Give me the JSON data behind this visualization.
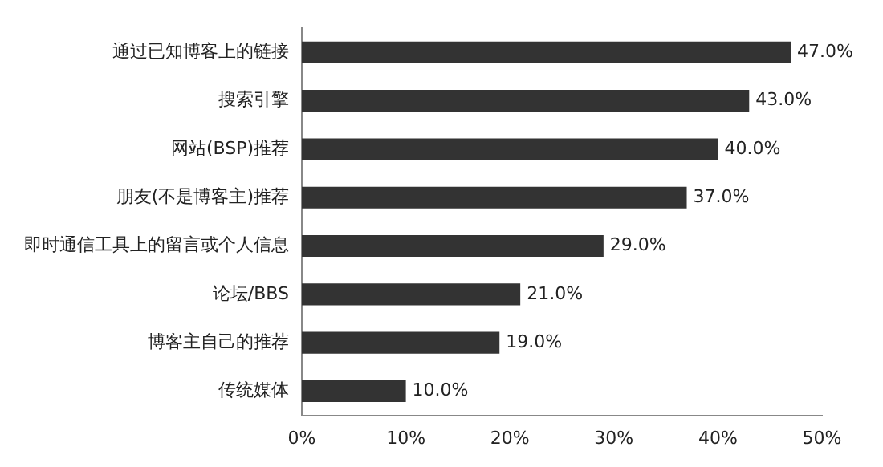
{
  "chart_data": {
    "type": "bar",
    "orientation": "horizontal",
    "categories": [
      "通过已知博客上的链接",
      "搜索引擎",
      "网站(BSP)推荐",
      "朋友(不是博客主)推荐",
      "即时通信工具上的留言或个人信息",
      "论坛/BBS",
      "博客主自己的推荐",
      "传统媒体"
    ],
    "values": [
      47,
      43,
      40,
      37,
      29,
      21,
      19,
      10
    ],
    "value_labels": [
      "47.0%",
      "43.0%",
      "40.0%",
      "37.0%",
      "29.0%",
      "21.0%",
      "19.0%",
      "10.0%"
    ],
    "color": "#333333",
    "xlim": [
      0,
      50
    ],
    "xticks": [
      {
        "value": 0,
        "label": "0%"
      },
      {
        "value": 10,
        "label": "10%"
      },
      {
        "value": 20,
        "label": "20%"
      },
      {
        "value": 30,
        "label": "30%"
      },
      {
        "value": 40,
        "label": "40%"
      },
      {
        "value": 50,
        "label": "50%"
      }
    ],
    "grid": false,
    "legend": false
  }
}
